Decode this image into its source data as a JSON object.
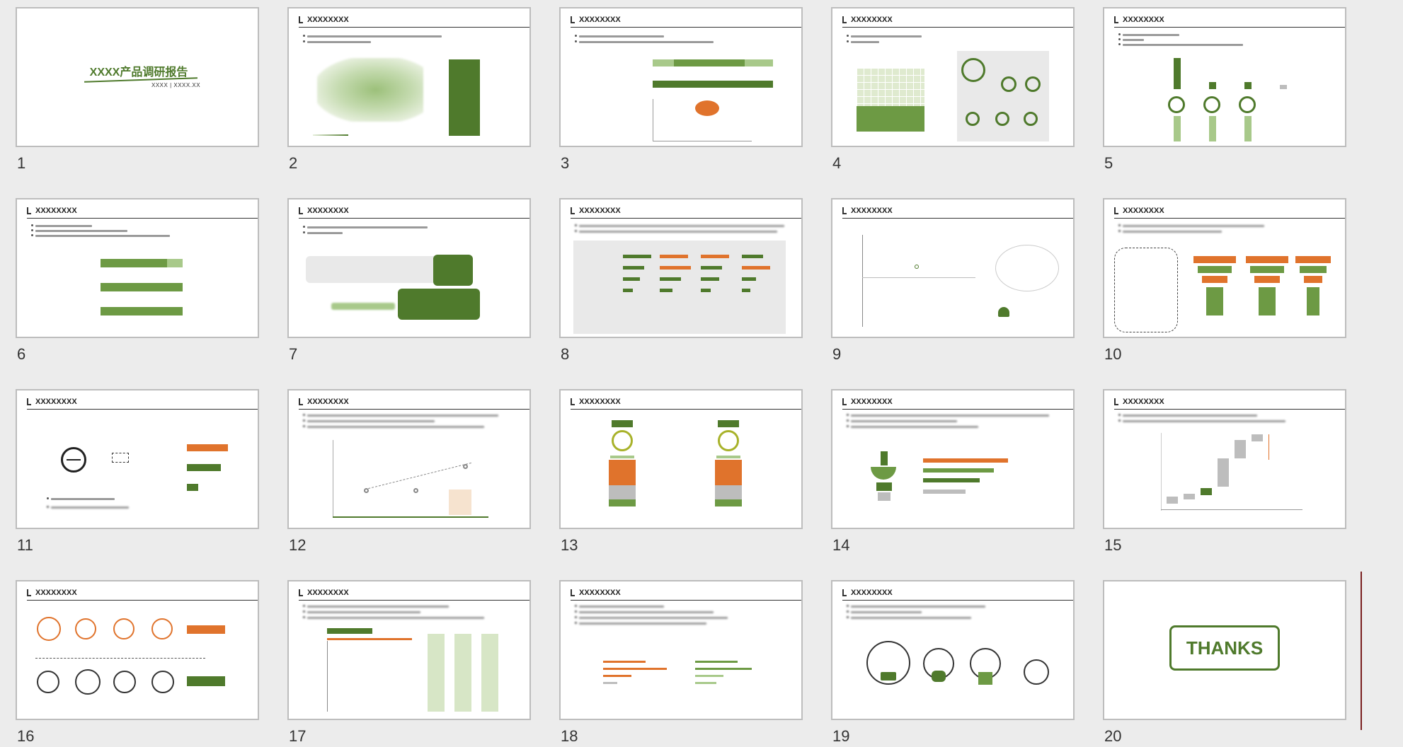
{
  "slides": [
    {
      "num": "1",
      "title": "XXXX产品调研报告",
      "sub": "XXXX | XXXX.XX"
    },
    {
      "num": "2",
      "title": "XXXXXXXX"
    },
    {
      "num": "3",
      "title": "XXXXXXXX"
    },
    {
      "num": "4",
      "title": "XXXXXXXX"
    },
    {
      "num": "5",
      "title": "XXXXXXXX"
    },
    {
      "num": "6",
      "title": "XXXXXXXX"
    },
    {
      "num": "7",
      "title": "XXXXXXXX"
    },
    {
      "num": "8",
      "title": "XXXXXXXX"
    },
    {
      "num": "9",
      "title": "XXXXXXXX"
    },
    {
      "num": "10",
      "title": "XXXXXXXX"
    },
    {
      "num": "11",
      "title": "XXXXXXXX"
    },
    {
      "num": "12",
      "title": "XXXXXXXX"
    },
    {
      "num": "13",
      "title": "XXXXXXXX"
    },
    {
      "num": "14",
      "title": "XXXXXXXX"
    },
    {
      "num": "15",
      "title": "XXXXXXXX"
    },
    {
      "num": "16",
      "title": "XXXXXXXX"
    },
    {
      "num": "17",
      "title": "XXXXXXXX"
    },
    {
      "num": "18",
      "title": "XXXXXXXX"
    },
    {
      "num": "19",
      "title": "XXXXXXXX"
    },
    {
      "num": "20",
      "title": "THANKS"
    }
  ],
  "colors": {
    "accent": "#4f7a2c",
    "accent_light": "#a8c98a",
    "orange": "#e0732c",
    "selection_line": "#7a1f1f"
  }
}
